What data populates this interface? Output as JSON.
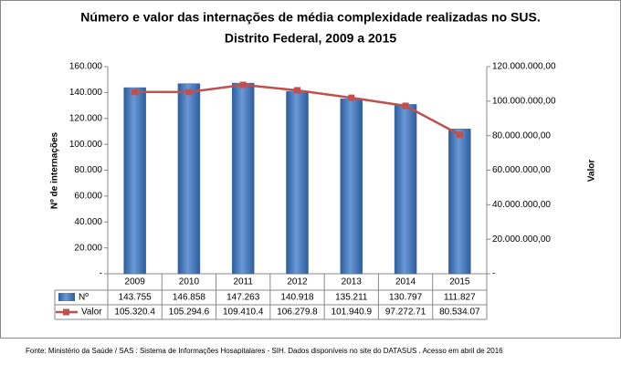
{
  "chart_data": {
    "type": "bar",
    "title": "Número e valor das internações de média complexidade realizadas no SUS.",
    "subtitle": "Distrito Federal, 2009 a 2015",
    "y_label": "Nº de internações",
    "y2_label": "Valor",
    "categories": [
      "2009",
      "2010",
      "2011",
      "2012",
      "2013",
      "2014",
      "2015"
    ],
    "series": [
      {
        "name": "Nº",
        "type": "bar",
        "color": "#4f81bd",
        "values": [
          143755,
          146858,
          147263,
          140918,
          135211,
          130797,
          111827
        ],
        "value_labels": [
          "143.755",
          "146.858",
          "147.263",
          "140.918",
          "135.211",
          "130.797",
          "111.827"
        ]
      },
      {
        "name": "Valor",
        "type": "line",
        "axis": "y2",
        "color": "#c0504d",
        "values": [
          105320400,
          105294600,
          109410400,
          106279800,
          101940900,
          97272710,
          80534070
        ],
        "value_labels": [
          "105.320.4",
          "105.294.6",
          "109.410.4",
          "106.279.8",
          "101.940.9",
          "97.272.71",
          "80.534.07"
        ]
      }
    ],
    "ylim": [
      0,
      160000
    ],
    "yticks": [
      {
        "value": 0,
        "label": "-"
      },
      {
        "value": 20000,
        "label": "20.000"
      },
      {
        "value": 40000,
        "label": "40.000"
      },
      {
        "value": 60000,
        "label": "60.000"
      },
      {
        "value": 80000,
        "label": "80.000"
      },
      {
        "value": 100000,
        "label": "100.000"
      },
      {
        "value": 120000,
        "label": "120.000"
      },
      {
        "value": 140000,
        "label": "140.000"
      },
      {
        "value": 160000,
        "label": "160.000"
      }
    ],
    "y2lim": [
      0,
      120000000
    ],
    "y2ticks": [
      {
        "value": 0,
        "label": "-"
      },
      {
        "value": 20000000,
        "label": "20.000.000,00"
      },
      {
        "value": 40000000,
        "label": "40.000.000,00"
      },
      {
        "value": 60000000,
        "label": "60.000.000,00"
      },
      {
        "value": 80000000,
        "label": "80.000.000,00"
      },
      {
        "value": 100000000,
        "label": "100.000.000,00"
      },
      {
        "value": 120000000,
        "label": "120.000.000,00"
      }
    ],
    "grid": false,
    "source": "Fonte:  Ministério da Saúde / SAS : Sistema de Informações Hosapitalares - SIH. Dados disponíveis no site do DATASUS . Acesso em abril de 2016"
  }
}
